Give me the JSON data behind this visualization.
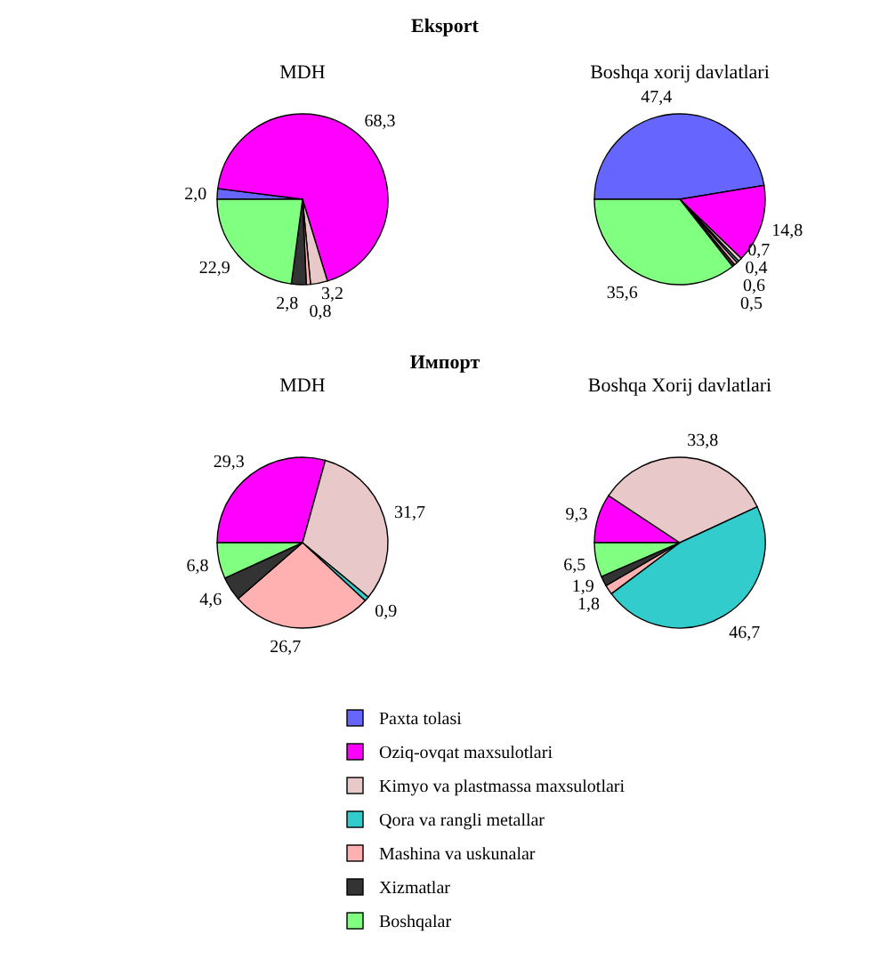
{
  "chart_data": [
    {
      "type": "pie",
      "title": "Eksport",
      "subtitle": "MDH",
      "legend": "bottom",
      "categories": [
        "Paxta tolasi",
        "Oziq-ovqat maxsulotlari",
        "Kimyo va plastmassa maxsulotlari",
        "Qora va rangli metallar",
        "Mashina va uskunalar",
        "Xizmatlar",
        "Boshqalar"
      ],
      "values": [
        2.0,
        68.3,
        3.2,
        null,
        0.8,
        2.8,
        22.9
      ],
      "value_labels": [
        "2,0",
        "68,3",
        "3,2",
        null,
        "0,8",
        "2,8",
        "22,9"
      ],
      "colors": [
        "#6666ff",
        "#ff00ff",
        "#e8c8c8",
        "#33cccc",
        "#ffb0b0",
        "#333333",
        "#80ff80"
      ]
    },
    {
      "type": "pie",
      "subtitle": "Boshqa xorij davlatlari",
      "categories": [
        null,
        null,
        null,
        null,
        null,
        null,
        null
      ],
      "values": [
        47.4,
        14.8,
        0.7,
        0.4,
        0.6,
        0.5,
        35.6
      ],
      "value_labels": [
        "47,4",
        "14,8",
        "0,7",
        "0,4",
        "0,6",
        "0,5",
        "35,6"
      ],
      "colors": [
        "#6666ff",
        "#ff00ff",
        "#e8c8c8",
        "#33cccc",
        "#ffb0b0",
        "#333333",
        "#80ff80"
      ]
    },
    {
      "type": "pie",
      "title": "Импорт",
      "subtitle": "MDH",
      "categories": [
        null,
        null,
        null,
        null,
        null,
        null,
        null
      ],
      "values": [
        null,
        29.3,
        31.7,
        0.9,
        26.7,
        4.6,
        6.8
      ],
      "value_labels": [
        null,
        "29,3",
        "31,7",
        "0,9",
        "26,7",
        "4,6",
        "6,8"
      ],
      "colors": [
        null,
        "#ff00ff",
        "#e8c8c8",
        "#33cccc",
        "#ffb0b0",
        "#333333",
        "#80ff80"
      ]
    },
    {
      "type": "pie",
      "subtitle": "Boshqa Xorij davlatlari",
      "categories": [
        null,
        null,
        null,
        null,
        null,
        null,
        null
      ],
      "values": [
        null,
        9.3,
        33.8,
        46.7,
        1.8,
        1.9,
        6.5
      ],
      "value_labels": [
        null,
        "9,3",
        "33,8",
        "46,7",
        "1,8",
        "1,9",
        "6,5"
      ],
      "colors": [
        null,
        "#ff00ff",
        "#e8c8c8",
        "#33cccc",
        "#ffb0b0",
        "#333333",
        "#80ff80"
      ]
    }
  ]
}
